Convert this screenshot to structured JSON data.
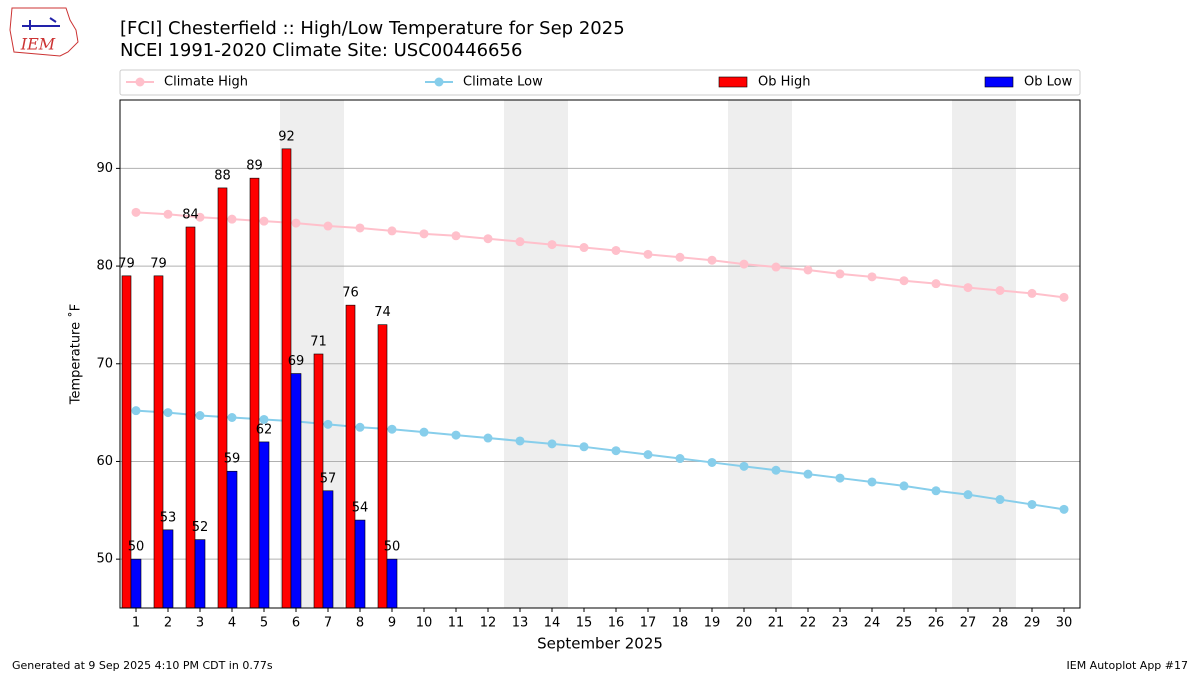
{
  "logo": "IEM",
  "chart_data": {
    "type": "combo",
    "title": "[FCI] Chesterfield :: High/Low Temperature for Sep 2025",
    "subtitle": "NCEI 1991-2020 Climate Site: USC00446656",
    "x_label": "September 2025",
    "y_label": "Temperature ˚F",
    "xlim": [
      0.5,
      30.5
    ],
    "xticks": [
      1,
      2,
      3,
      4,
      5,
      6,
      7,
      8,
      9,
      10,
      11,
      12,
      13,
      14,
      15,
      16,
      17,
      18,
      19,
      20,
      21,
      22,
      23,
      24,
      25,
      26,
      27,
      28,
      29,
      30
    ],
    "ylim": [
      45,
      97
    ],
    "yticks": [
      50,
      60,
      70,
      80,
      90
    ],
    "grid": true,
    "legend": "top",
    "shaded_days": [
      6,
      7,
      13,
      14,
      20,
      21,
      27,
      28
    ],
    "series": [
      {
        "name": "Climate High",
        "kind": "line",
        "color": "#ffc0cb",
        "x": [
          1,
          2,
          3,
          4,
          5,
          6,
          7,
          8,
          9,
          10,
          11,
          12,
          13,
          14,
          15,
          16,
          17,
          18,
          19,
          20,
          21,
          22,
          23,
          24,
          25,
          26,
          27,
          28,
          29,
          30
        ],
        "values": [
          85.5,
          85.3,
          85.0,
          84.8,
          84.6,
          84.4,
          84.1,
          83.9,
          83.6,
          83.3,
          83.1,
          82.8,
          82.5,
          82.2,
          81.9,
          81.6,
          81.2,
          80.9,
          80.6,
          80.2,
          79.9,
          79.6,
          79.2,
          78.9,
          78.5,
          78.2,
          77.8,
          77.5,
          77.2,
          76.8
        ]
      },
      {
        "name": "Climate Low",
        "kind": "line",
        "color": "#87ceeb",
        "x": [
          1,
          2,
          3,
          4,
          5,
          6,
          7,
          8,
          9,
          10,
          11,
          12,
          13,
          14,
          15,
          16,
          17,
          18,
          19,
          20,
          21,
          22,
          23,
          24,
          25,
          26,
          27,
          28,
          29,
          30
        ],
        "values": [
          65.2,
          65.0,
          64.7,
          64.5,
          64.3,
          64.1,
          63.8,
          63.5,
          63.3,
          63.0,
          62.7,
          62.4,
          62.1,
          61.8,
          61.5,
          61.1,
          60.7,
          60.3,
          59.9,
          59.5,
          59.1,
          58.7,
          58.3,
          57.9,
          57.5,
          57.0,
          56.6,
          56.1,
          55.6,
          55.1
        ]
      },
      {
        "name": "Ob High",
        "kind": "bar",
        "color": "#ff0000",
        "offset": "left",
        "x": [
          1,
          2,
          3,
          4,
          5,
          6,
          7,
          8,
          9
        ],
        "values": [
          79,
          79,
          84,
          88,
          89,
          92,
          71,
          76,
          74
        ]
      },
      {
        "name": "Ob Low",
        "kind": "bar",
        "color": "#0000ff",
        "offset": "right",
        "x": [
          1,
          2,
          3,
          4,
          5,
          6,
          7,
          8,
          9
        ],
        "values": [
          50,
          53,
          52,
          59,
          62,
          69,
          57,
          54,
          50
        ]
      }
    ],
    "footer_left": "Generated at 9 Sep 2025 4:10 PM CDT in 0.77s",
    "footer_right": "IEM Autoplot App #17"
  }
}
